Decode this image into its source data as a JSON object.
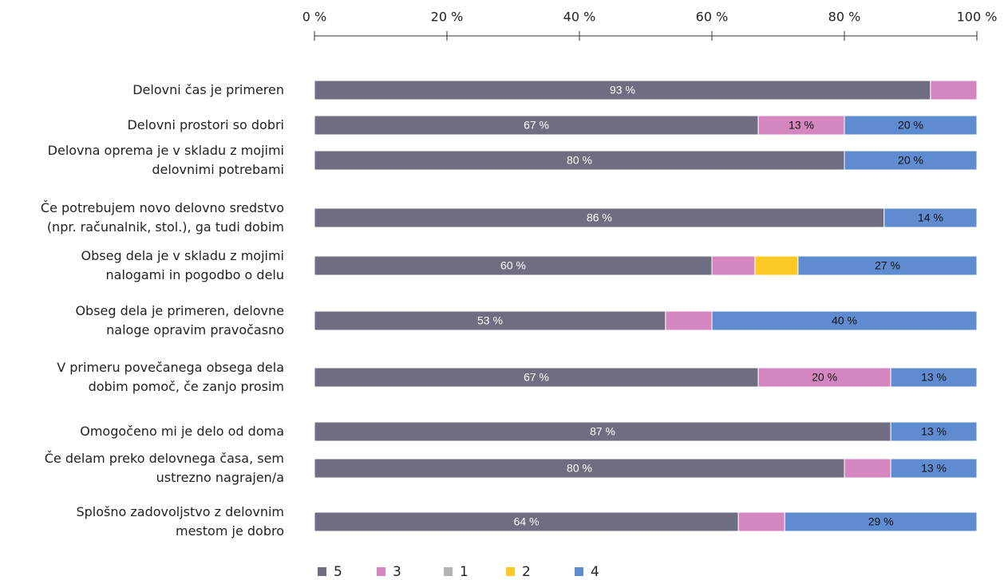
{
  "chart_data": {
    "type": "stacked_barh",
    "categories": [
      "Delovni čas je primeren",
      "Delovni prostori so dobri",
      "Delovna oprema je v skladu z mojimi\ndelovnimi potrebami",
      "Če potrebujem novo delovno sredstvo\n(npr. računalnik, stol.), ga tudi dobim",
      "Obseg dela je v skladu z mojimi\nnalogami in pogodbo o delu",
      "Obseg dela je primeren, delovne\nnaloge opravim pravočasno",
      "V primeru povečanega obsega dela\ndobim pomoč, če zanjo prosim",
      "Omogočeno mi je delo od doma",
      "Če delam preko delovnega časa, sem\nustrezno nagrajen/a",
      "Splošno zadovoljstvo z delovnim\nmestom je dobro"
    ],
    "series": [
      {
        "name": "5",
        "color": "#6e6d82",
        "values": [
          93,
          67,
          80,
          86,
          60,
          53,
          67,
          87,
          80,
          64
        ],
        "value_labels": [
          "93 %",
          "67 %",
          "80 %",
          "86 %",
          "60 %",
          "53 %",
          "67 %",
          "87 %",
          "80 %",
          "64 %"
        ]
      },
      {
        "name": "3",
        "color": "#d386c0",
        "values": [
          7,
          13,
          0,
          0,
          6.5,
          7,
          20,
          0,
          7,
          7
        ],
        "value_labels": [
          null,
          "13 %",
          null,
          null,
          null,
          null,
          "20 %",
          null,
          null,
          null
        ]
      },
      {
        "name": "1",
        "color": "#b3b3b3",
        "values": [
          0,
          0,
          0,
          0,
          0,
          0,
          0,
          0,
          0,
          0
        ]
      },
      {
        "name": "2",
        "color": "#fcc925",
        "values": [
          0,
          0,
          0,
          0,
          6.5,
          0,
          0,
          0,
          0,
          0
        ]
      },
      {
        "name": "4",
        "color": "#5f8bd0",
        "values": [
          0,
          20,
          20,
          14,
          27,
          40,
          13,
          13,
          13,
          29
        ],
        "value_labels": [
          null,
          "20 %",
          "20 %",
          "14 %",
          "27 %",
          "40 %",
          "13 %",
          "13 %",
          "13 %",
          "29 %"
        ]
      }
    ],
    "xlim": [
      0,
      100
    ],
    "xticks": [
      {
        "value": 0,
        "label": "0 %"
      },
      {
        "value": 20,
        "label": "20 %"
      },
      {
        "value": 40,
        "label": "40 %"
      },
      {
        "value": 60,
        "label": "60 %"
      },
      {
        "value": 80,
        "label": "80 %"
      },
      {
        "value": 100,
        "label": "100 %"
      }
    ],
    "legend": "bottom"
  }
}
